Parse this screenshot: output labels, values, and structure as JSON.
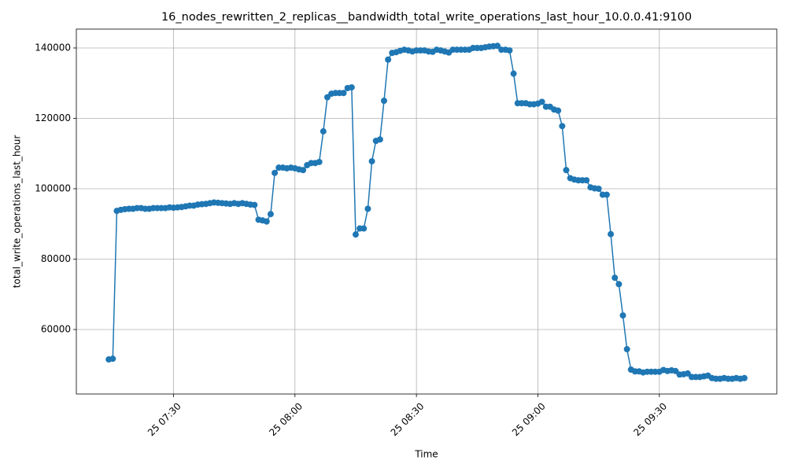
{
  "chart_data": {
    "type": "line",
    "title": "16_nodes_rewritten_2_replicas__bandwidth_total_write_operations_last_hour_10.0.0.41:9100",
    "x_label": "Time",
    "y_label": "total_write_operations_last_hour",
    "grid": true,
    "xlim": [
      "25 07:06",
      "25 09:59"
    ],
    "xticks": [
      "25 07:30",
      "25 08:00",
      "25 08:30",
      "25 09:00",
      "25 09:30"
    ],
    "ylim": [
      41676,
      145360
    ],
    "yticks": [
      60000,
      80000,
      100000,
      120000,
      140000
    ],
    "x": [
      "25 07:14",
      "25 07:15",
      "25 07:16",
      "25 07:17",
      "25 07:18",
      "25 07:19",
      "25 07:20",
      "25 07:21",
      "25 07:22",
      "25 07:23",
      "25 07:24",
      "25 07:25",
      "25 07:26",
      "25 07:27",
      "25 07:28",
      "25 07:29",
      "25 07:30",
      "25 07:31",
      "25 07:32",
      "25 07:33",
      "25 07:34",
      "25 07:35",
      "25 07:36",
      "25 07:37",
      "25 07:38",
      "25 07:39",
      "25 07:40",
      "25 07:41",
      "25 07:42",
      "25 07:43",
      "25 07:44",
      "25 07:45",
      "25 07:46",
      "25 07:47",
      "25 07:48",
      "25 07:49",
      "25 07:50",
      "25 07:51",
      "25 07:52",
      "25 07:53",
      "25 07:54",
      "25 07:55",
      "25 07:56",
      "25 07:57",
      "25 07:58",
      "25 07:59",
      "25 08:00",
      "25 08:01",
      "25 08:02",
      "25 08:03",
      "25 08:04",
      "25 08:05",
      "25 08:06",
      "25 08:07",
      "25 08:08",
      "25 08:09",
      "25 08:10",
      "25 08:11",
      "25 08:12",
      "25 08:13",
      "25 08:14",
      "25 08:15",
      "25 08:16",
      "25 08:17",
      "25 08:18",
      "25 08:19",
      "25 08:20",
      "25 08:21",
      "25 08:22",
      "25 08:23",
      "25 08:24",
      "25 08:25",
      "25 08:26",
      "25 08:27",
      "25 08:28",
      "25 08:29",
      "25 08:30",
      "25 08:31",
      "25 08:32",
      "25 08:33",
      "25 08:34",
      "25 08:35",
      "25 08:36",
      "25 08:37",
      "25 08:38",
      "25 08:39",
      "25 08:40",
      "25 08:41",
      "25 08:42",
      "25 08:43",
      "25 08:44",
      "25 08:45",
      "25 08:46",
      "25 08:47",
      "25 08:48",
      "25 08:49",
      "25 08:50",
      "25 08:51",
      "25 08:52",
      "25 08:53",
      "25 08:54",
      "25 08:55",
      "25 08:56",
      "25 08:57",
      "25 08:58",
      "25 08:59",
      "25 09:00",
      "25 09:01",
      "25 09:02",
      "25 09:03",
      "25 09:04",
      "25 09:05",
      "25 09:06",
      "25 09:07",
      "25 09:08",
      "25 09:09",
      "25 09:10",
      "25 09:11",
      "25 09:12",
      "25 09:13",
      "25 09:14",
      "25 09:15",
      "25 09:16",
      "25 09:17",
      "25 09:18",
      "25 09:19",
      "25 09:20",
      "25 09:21",
      "25 09:22",
      "25 09:23",
      "25 09:24",
      "25 09:25",
      "25 09:26",
      "25 09:27",
      "25 09:28",
      "25 09:29",
      "25 09:30",
      "25 09:31",
      "25 09:32",
      "25 09:33",
      "25 09:34",
      "25 09:35",
      "25 09:36",
      "25 09:37",
      "25 09:38",
      "25 09:39",
      "25 09:40",
      "25 09:41",
      "25 09:42",
      "25 09:43",
      "25 09:44",
      "25 09:45",
      "25 09:46",
      "25 09:47",
      "25 09:48",
      "25 09:49",
      "25 09:50",
      "25 09:51"
    ],
    "series": [
      {
        "color": "#1f77b4",
        "values": [
          51500,
          51700,
          93700,
          94000,
          94200,
          94300,
          94300,
          94500,
          94500,
          94300,
          94300,
          94500,
          94500,
          94500,
          94500,
          94700,
          94600,
          94700,
          94800,
          95000,
          95200,
          95200,
          95500,
          95600,
          95700,
          95900,
          96100,
          96000,
          95900,
          95800,
          95700,
          95900,
          95700,
          95900,
          95700,
          95500,
          95400,
          91200,
          91000,
          90700,
          92800,
          104500,
          106000,
          106000,
          105800,
          106000,
          105800,
          105500,
          105300,
          106700,
          107300,
          107300,
          107600,
          116300,
          126000,
          127000,
          127200,
          127200,
          127200,
          128600,
          128800,
          87000,
          88700,
          88700,
          94300,
          107800,
          113600,
          114000,
          125000,
          136700,
          138600,
          138800,
          139200,
          139500,
          139300,
          139000,
          139300,
          139300,
          139300,
          139000,
          138900,
          139500,
          139300,
          139000,
          138700,
          139500,
          139500,
          139500,
          139500,
          139500,
          140000,
          140000,
          140000,
          140200,
          140400,
          140500,
          140600,
          139500,
          139500,
          139300,
          132700,
          124300,
          124300,
          124300,
          124000,
          124000,
          124200,
          124700,
          123300,
          123300,
          122500,
          122200,
          117800,
          105300,
          103000,
          102600,
          102400,
          102400,
          102400,
          100400,
          100100,
          100000,
          98300,
          98300,
          87100,
          74700,
          72900,
          64000,
          54400,
          48600,
          48100,
          48100,
          47800,
          48000,
          48000,
          48000,
          48000,
          48500,
          48200,
          48400,
          48200,
          47200,
          47300,
          47500,
          46500,
          46500,
          46500,
          46700,
          46900,
          46200,
          46000,
          46000,
          46200,
          46000,
          46000,
          46200,
          46000,
          46200
        ]
      }
    ]
  }
}
